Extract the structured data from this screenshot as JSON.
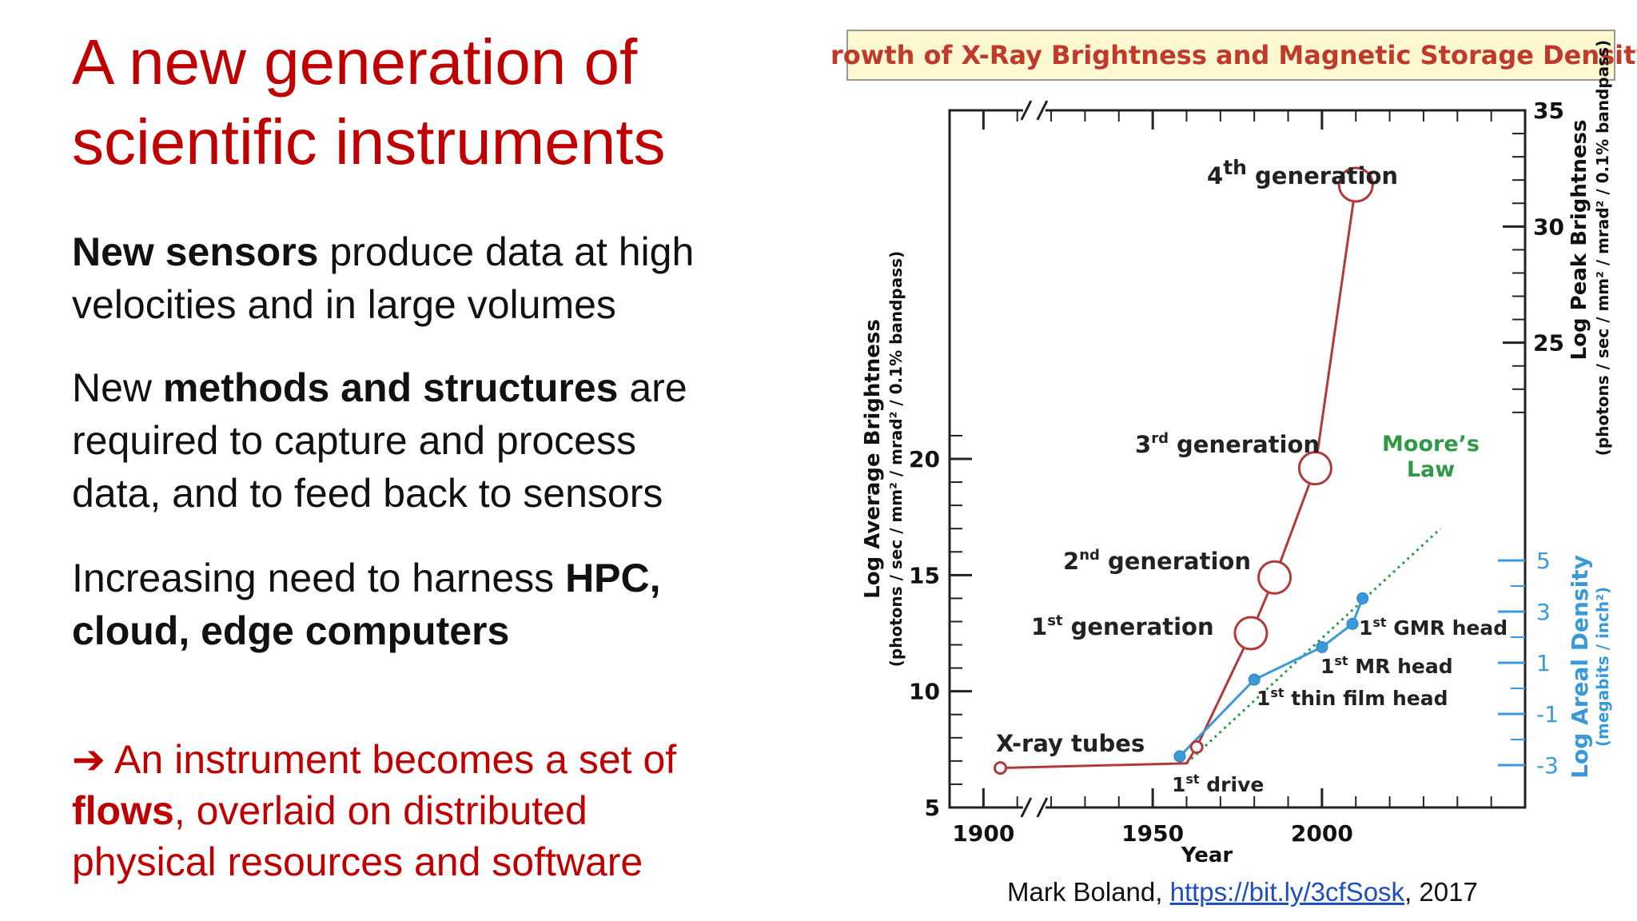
{
  "slide": {
    "title_line1": "A new generation of",
    "title_line2": "scientific instruments",
    "bullet1": {
      "bold": "New sensors",
      "rest1": " produce data at high",
      "rest2": "velocities and in large volumes"
    },
    "bullet2": {
      "pre": "New ",
      "bold": "methods and structures",
      "post1": " are",
      "rest2": "required to capture and process",
      "rest3": "data, and to feed back to sensors"
    },
    "bullet3": {
      "pre": "Increasing need to harness ",
      "bold1": "HPC,",
      "bold2": "cloud, edge computers"
    },
    "conclusion": {
      "arrow": "➔",
      "line1": " An instrument becomes a set of",
      "bold": "flows",
      "line2": ", overlaid on distributed",
      "line3": "physical resources and software"
    },
    "caption": {
      "author": "Mark Boland, ",
      "link": "https://bit.ly/3cfSosk",
      "year": ", 2017"
    }
  },
  "colors": {
    "title_red": "#c00000",
    "chart_red": "#b03a3a",
    "chart_blue": "#3a9ad9",
    "chart_green": "#2e9a47",
    "chart_title_bg": "#fdf8cf"
  },
  "chart_data": {
    "type": "line",
    "title": "Growth of X-Ray Brightness and Magnetic Storage Density",
    "xlabel": "Year",
    "ylabel_left": "Log Average Brightness",
    "ylabel_left_units": "(photons / sec / mm² / mrad² / 0.1% bandpass)",
    "ylabel_right": "Log Peak Brightness",
    "ylabel_right_units": "(photons / sec / mm² / mrad² / 0.1% bandpass)",
    "ylabel_density": "Log Areal Density",
    "ylabel_density_units": "(megabits / inch²)",
    "xlim": [
      1890,
      2060
    ],
    "ylim_left": [
      5,
      35
    ],
    "x_ticks": [
      1900,
      1950,
      2000
    ],
    "x_tick_labels": [
      "1900",
      "1950",
      "2000"
    ],
    "left_ticks": [
      5,
      10,
      15,
      20
    ],
    "left_tick_labels": [
      "5",
      "10",
      "15",
      "20"
    ],
    "right_ticks": [
      25,
      30,
      35
    ],
    "right_tick_labels": [
      "25",
      "30",
      "35"
    ],
    "density_ticks": [
      -3,
      -1,
      1,
      3,
      5
    ],
    "density_tick_labels": [
      "-3",
      "-1",
      "1",
      "3",
      "5"
    ],
    "series": [
      {
        "name": "X-ray brightness",
        "x": [
          1905,
          1960,
          1963,
          1979,
          1986,
          1998,
          2010
        ],
        "y": [
          6.7,
          6.9,
          7.6,
          12.5,
          14.9,
          19.6,
          31.8
        ]
      },
      {
        "name": "Magnetic storage density",
        "x": [
          1958,
          1980,
          2000,
          2009,
          2012
        ],
        "y": [
          7.2,
          10.5,
          11.9,
          12.9,
          14.0
        ]
      }
    ],
    "moores_law": {
      "label1": "Moore’s",
      "label2": "Law",
      "x": [
        1960,
        2035
      ],
      "y": [
        6.9,
        17.0
      ]
    },
    "annotations": [
      {
        "id": "gen4",
        "base": "4",
        "sup": "th",
        "text": " generation"
      },
      {
        "id": "gen3",
        "base": "3",
        "sup": "rd",
        "text": " generation"
      },
      {
        "id": "gen2",
        "base": "2",
        "sup": "nd",
        "text": " generation"
      },
      {
        "id": "gen1",
        "base": "1",
        "sup": "st",
        "text": " generation"
      },
      {
        "id": "xray",
        "base": "X-ray tubes",
        "sup": "",
        "text": ""
      },
      {
        "id": "drive",
        "base": "1",
        "sup": "st",
        "text": " drive"
      },
      {
        "id": "thin",
        "base": "1",
        "sup": "st",
        "text": " thin film head"
      },
      {
        "id": "mr",
        "base": "1",
        "sup": "st",
        "text": " MR head"
      },
      {
        "id": "gmr",
        "base": "1",
        "sup": "st",
        "text": " GMR head"
      }
    ],
    "axis_break_symbol": "//"
  }
}
